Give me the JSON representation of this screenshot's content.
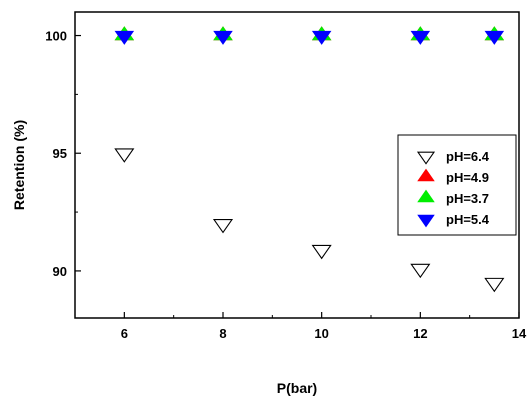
{
  "chart_data": {
    "type": "scatter",
    "xlabel": "P(bar)",
    "ylabel": "Retention (%)",
    "xlim": [
      5,
      14
    ],
    "ylim": [
      88,
      101
    ],
    "xticks": [
      6,
      8,
      10,
      12,
      14
    ],
    "yticks": [
      90,
      95,
      100
    ],
    "legend_position": "right",
    "series": [
      {
        "name": "pH=6.4",
        "marker": "triangle-down-open",
        "color": "#000000",
        "x": [
          6,
          8,
          10,
          12,
          13.5
        ],
        "y": [
          95.0,
          92.0,
          90.9,
          90.1,
          89.5
        ]
      },
      {
        "name": "pH=4.9",
        "marker": "triangle-up",
        "color": "#ff0000",
        "x": [
          6,
          8,
          10,
          12,
          13.5
        ],
        "y": [
          100,
          100,
          100,
          100,
          100
        ]
      },
      {
        "name": "pH=3.7",
        "marker": "triangle-up",
        "color": "#00ee00",
        "x": [
          6,
          8,
          10,
          12,
          13.5
        ],
        "y": [
          100,
          100,
          100,
          100,
          100
        ]
      },
      {
        "name": "pH=5.4",
        "marker": "triangle-down",
        "color": "#0000ff",
        "x": [
          6,
          8,
          10,
          12,
          13.5
        ],
        "y": [
          100,
          100,
          100,
          100,
          100
        ]
      }
    ]
  }
}
